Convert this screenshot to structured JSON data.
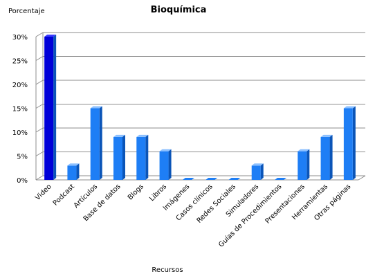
{
  "chart_data": {
    "type": "bar",
    "title": "Bioquímica",
    "ylabel": "Porcentaje",
    "xlabel": "Recursos",
    "ylim": [
      0,
      30
    ],
    "yticks": [
      "0%",
      "5%",
      "10%",
      "15%",
      "20%",
      "25%",
      "30%"
    ],
    "grid": true,
    "categories": [
      "Video",
      "Podcast",
      "Artículos",
      "Base de datos",
      "Blogs",
      "Libros",
      "Imágenes",
      "Casos clínicos",
      "Redes Sociales",
      "Simuladores",
      "Guías de Procedimientos",
      "Presentaciones",
      "Herramientas",
      "Otras páginas"
    ],
    "values": [
      30,
      3,
      15,
      9,
      9,
      6,
      0,
      0,
      0,
      3,
      0,
      6,
      9,
      15
    ],
    "colors": {
      "highlight": "#0000d8",
      "bar": "#1e7ef5",
      "bar_side": "#0b55b8",
      "bar_top": "#8cc0ff",
      "grid": "#8c8c8c"
    }
  }
}
